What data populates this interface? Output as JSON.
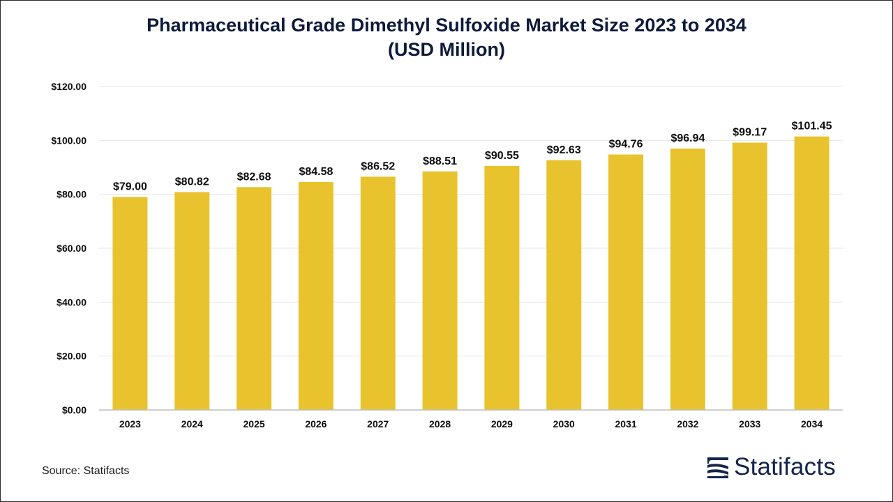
{
  "title_line1": "Pharmaceutical Grade Dimethyl Sulfoxide Market Size 2023 to 2034",
  "title_line2": "(USD Million)",
  "source": "Source: Statifacts",
  "logo": {
    "name": "Statifacts",
    "icon": "statifacts-logo-icon",
    "color": "#14244a"
  },
  "colors": {
    "bar": "#e8c32e",
    "grid": "#e6e6e6",
    "axis": "#bfbfbf",
    "text": "#0d0d0d"
  },
  "chart_data": {
    "type": "bar",
    "title": "Pharmaceutical Grade Dimethyl Sulfoxide Market Size 2023 to 2034 (USD Million)",
    "categories": [
      "2023",
      "2024",
      "2025",
      "2026",
      "2027",
      "2028",
      "2029",
      "2030",
      "2031",
      "2032",
      "2033",
      "2034"
    ],
    "values": [
      79.0,
      80.82,
      82.68,
      84.58,
      86.52,
      88.51,
      90.55,
      92.63,
      94.76,
      96.94,
      99.17,
      101.45
    ],
    "data_labels": [
      "$79.00",
      "$80.82",
      "$82.68",
      "$84.58",
      "$86.52",
      "$88.51",
      "$90.55",
      "$92.63",
      "$94.76",
      "$96.94",
      "$99.17",
      "$101.45"
    ],
    "yticks": [
      0,
      20,
      40,
      60,
      80,
      100,
      120
    ],
    "ytick_labels": [
      "$0.00",
      "$20.00",
      "$40.00",
      "$60.00",
      "$80.00",
      "$100.00",
      "$120.00"
    ],
    "ylim": [
      0,
      120
    ],
    "xlabel": "",
    "ylabel": "",
    "grid": true,
    "legend": "none"
  }
}
